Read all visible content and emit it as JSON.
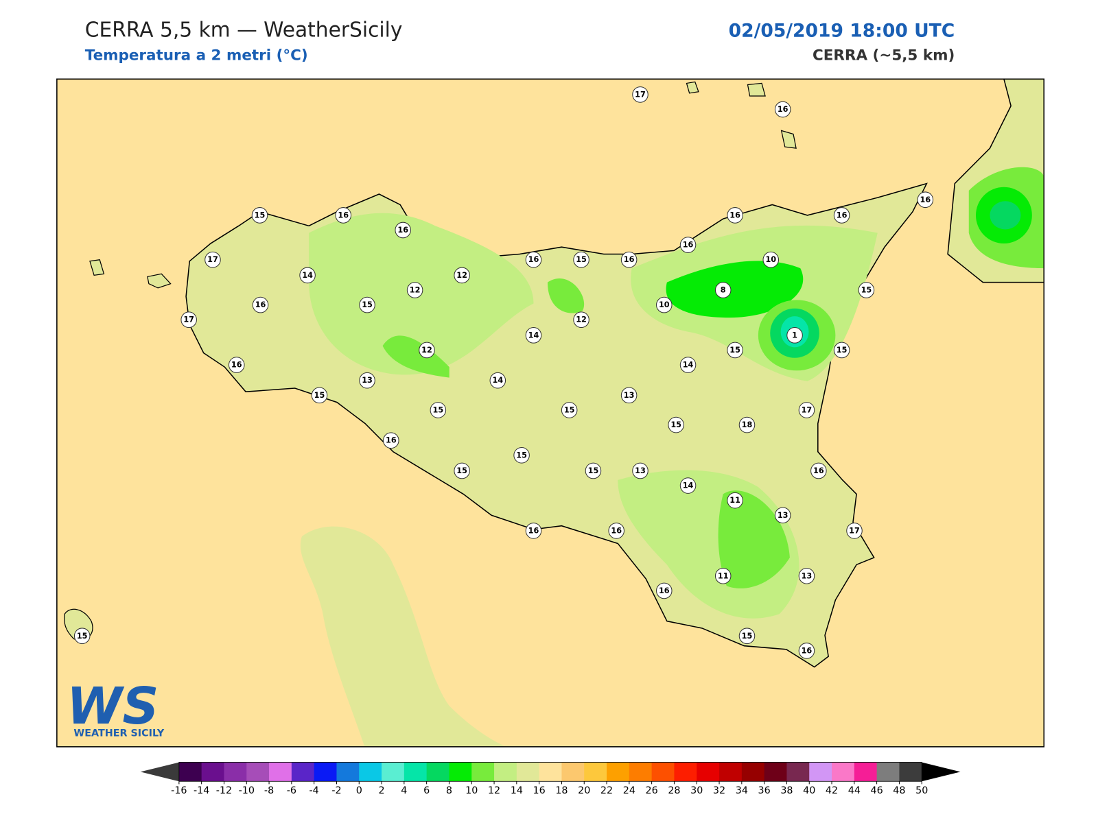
{
  "header": {
    "title": "CERRA 5,5 km — WeatherSicily",
    "subtitle": "Temperatura a 2 metri (°C)",
    "datetime": "02/05/2019 18:00 UTC",
    "model": "CERRA (~5,5 km)"
  },
  "stations": [
    17,
    16,
    15,
    16,
    16,
    17,
    14,
    16,
    17,
    15,
    12,
    12,
    16,
    15,
    16,
    16,
    16,
    16,
    16,
    10,
    8,
    10,
    15,
    1,
    15,
    15,
    12,
    14,
    12,
    16,
    13,
    14,
    14,
    15,
    15,
    15,
    13,
    17,
    15,
    18,
    16,
    15,
    15,
    15,
    13,
    16,
    14,
    11,
    13,
    17,
    16,
    16,
    11,
    13,
    16,
    15,
    16,
    15
  ],
  "colorbar": {
    "ticks": [
      -16,
      -14,
      -12,
      -10,
      -8,
      -6,
      -4,
      -2,
      0,
      2,
      4,
      6,
      8,
      10,
      12,
      14,
      16,
      18,
      20,
      22,
      24,
      26,
      28,
      30,
      32,
      34,
      36,
      38,
      40,
      42,
      44,
      46,
      48,
      50
    ],
    "colors": [
      "#3d0050",
      "#6a0f8e",
      "#8a2ea8",
      "#a64db8",
      "#e070e8",
      "#5a25c8",
      "#0a1af5",
      "#1479dc",
      "#0ac8e6",
      "#5aeed2",
      "#05e5a8",
      "#05d860",
      "#05eb05",
      "#78eb3c",
      "#c3ee82",
      "#e1e898",
      "#fee39c",
      "#fcc86e",
      "#fdc83c",
      "#fda000",
      "#fd7d00",
      "#fd5000",
      "#fd1e00",
      "#e60000",
      "#c00000",
      "#960000",
      "#6e0018",
      "#782850",
      "#d296f5",
      "#fa78c8",
      "#f51e96",
      "#7d7d7d",
      "#3c3c3c"
    ],
    "under": "#3a3a3a",
    "over": "#000000"
  },
  "logo": {
    "letters": "WS",
    "text": "WEATHER SICILY"
  }
}
